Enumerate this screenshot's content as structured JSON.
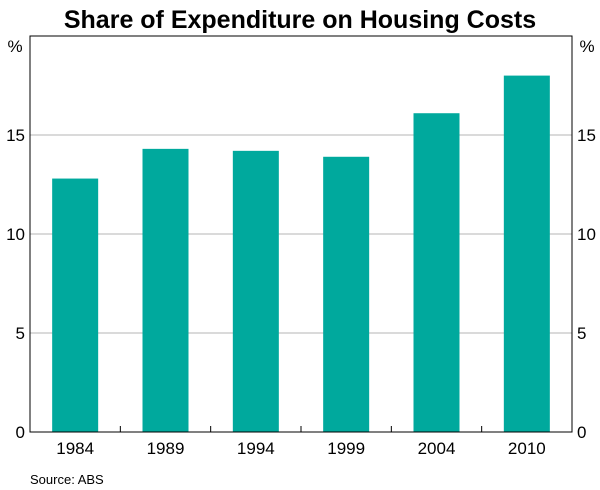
{
  "chart_data": {
    "type": "bar",
    "title": "Share of Expenditure on Housing Costs",
    "categories": [
      "1984",
      "1989",
      "1994",
      "1999",
      "2004",
      "2010"
    ],
    "values": [
      12.8,
      14.3,
      14.2,
      13.9,
      16.1,
      18.0
    ],
    "ylabel_left": "%",
    "ylabel_right": "%",
    "ylim": [
      0,
      20
    ],
    "yticks": [
      0,
      5,
      10,
      15
    ],
    "grid": true,
    "source": "Source: ABS",
    "bar_color": "#00a99d",
    "grid_color": "#b4b4b4"
  }
}
